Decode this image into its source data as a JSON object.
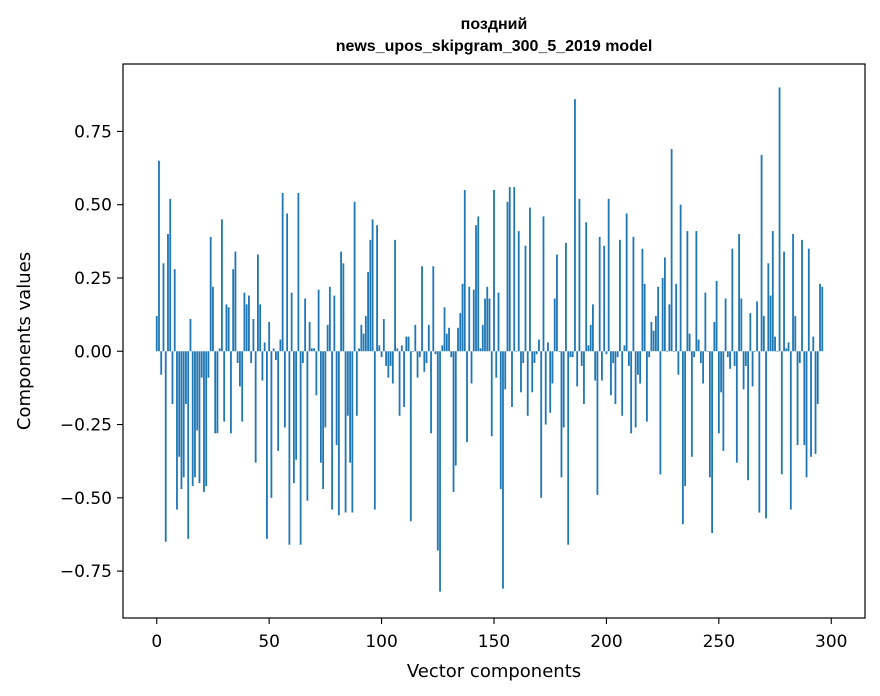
{
  "chart_data": {
    "type": "bar",
    "title_line1": "поздний",
    "title_line2": "news_upos_skipgram_300_5_2019 model",
    "xlabel": "Vector components",
    "ylabel": "Components values",
    "xlim": [
      -15,
      315
    ],
    "ylim": [
      -0.91,
      0.98
    ],
    "xticks": [
      0,
      50,
      100,
      150,
      200,
      250,
      300
    ],
    "yticks": [
      -0.75,
      -0.5,
      -0.25,
      0.0,
      0.25,
      0.5,
      0.75
    ],
    "xtick_labels": [
      "0",
      "50",
      "100",
      "150",
      "200",
      "250",
      "300"
    ],
    "ytick_labels": [
      "−0.75",
      "−0.50",
      "−0.25",
      "0.00",
      "0.25",
      "0.50",
      "0.75"
    ],
    "bar_color": "#1f77b4",
    "values": [
      0.12,
      0.65,
      -0.08,
      0.3,
      -0.65,
      0.4,
      0.52,
      -0.18,
      0.28,
      -0.54,
      -0.36,
      -0.47,
      -0.43,
      -0.18,
      -0.64,
      0.11,
      -0.46,
      -0.43,
      -0.27,
      -0.45,
      -0.09,
      -0.48,
      -0.46,
      -0.09,
      0.39,
      0.22,
      -0.28,
      -0.28,
      0.01,
      0.45,
      -0.24,
      0.16,
      0.15,
      -0.28,
      0.28,
      0.34,
      -0.04,
      -0.12,
      -0.24,
      0.2,
      0.16,
      0.19,
      -0.04,
      0.11,
      -0.38,
      0.33,
      0.16,
      -0.1,
      0.03,
      -0.64,
      0.1,
      -0.5,
      0.01,
      -0.03,
      -0.34,
      0.04,
      0.54,
      -0.26,
      0.47,
      -0.66,
      0.2,
      -0.45,
      -0.37,
      0.54,
      -0.66,
      -0.04,
      0.18,
      -0.51,
      0.1,
      0.01,
      0.01,
      -0.15,
      0.21,
      -0.38,
      -0.47,
      -0.26,
      0.09,
      0.22,
      -0.54,
      0.19,
      -0.32,
      -0.56,
      0.34,
      0.3,
      -0.55,
      -0.22,
      -0.38,
      -0.55,
      0.51,
      -0.22,
      0.01,
      0.09,
      0.06,
      0.12,
      0.27,
      0.38,
      0.45,
      -0.54,
      0.43,
      0.02,
      -0.02,
      0.11,
      -0.05,
      -0.09,
      -0.05,
      -0.11,
      0.38,
      0.01,
      -0.22,
      0.02,
      -0.19,
      0.05,
      0.05,
      -0.58,
      0.0,
      0.09,
      -0.09,
      -0.02,
      0.29,
      -0.07,
      -0.04,
      0.09,
      -0.28,
      0.29,
      -0.01,
      -0.68,
      -0.82,
      0.02,
      0.15,
      0.06,
      0.08,
      -0.02,
      -0.48,
      -0.39,
      0.08,
      0.13,
      0.23,
      0.55,
      -0.31,
      0.22,
      -0.11,
      0.21,
      0.43,
      0.46,
      0.01,
      0.09,
      0.18,
      0.22,
      0.18,
      -0.29,
      0.55,
      -0.09,
      0.2,
      -0.47,
      -0.81,
      -0.13,
      0.51,
      0.56,
      -0.19,
      0.56,
      0.0,
      0.41,
      -0.14,
      -0.04,
      0.36,
      -0.22,
      0.49,
      -0.14,
      -0.04,
      -0.01,
      0.04,
      -0.5,
      0.46,
      -0.25,
      0.03,
      -0.21,
      -0.11,
      0.18,
      0.33,
      0.0,
      -0.43,
      -0.26,
      0.37,
      -0.66,
      -0.02,
      -0.02,
      0.86,
      -0.12,
      0.52,
      -0.05,
      -0.18,
      0.44,
      0.02,
      0.09,
      0.16,
      -0.1,
      -0.49,
      0.39,
      -0.1,
      0.36,
      -0.01,
      0.52,
      -0.15,
      -0.04,
      -0.18,
      -0.02,
      0.38,
      -0.22,
      0.02,
      0.47,
      -0.05,
      -0.28,
      0.39,
      -0.26,
      -0.08,
      -0.11,
      0.35,
      0.23,
      -0.24,
      -0.02,
      0.1,
      0.07,
      0.12,
      0.22,
      -0.42,
      0.25,
      0.32,
      0.0,
      0.16,
      0.69,
      0.0,
      0.23,
      -0.08,
      0.5,
      -0.59,
      -0.46,
      0.41,
      0.06,
      -0.36,
      -0.02,
      0.41,
      0.04,
      -0.04,
      -0.11,
      0.2,
      0.0,
      -0.43,
      -0.62,
      0.1,
      0.24,
      -0.28,
      -0.14,
      -0.34,
      0.18,
      -0.02,
      -0.06,
      0.35,
      -0.05,
      -0.38,
      0.4,
      0.18,
      -0.13,
      -0.05,
      -0.44,
      0.13,
      -0.12,
      0.0,
      0.17,
      -0.55,
      0.67,
      0.12,
      -0.57,
      0.3,
      0.19,
      0.41,
      0.05,
      0.0,
      0.9,
      -0.42,
      0.34,
      0.01,
      0.03,
      -0.54,
      0.4,
      0.12,
      -0.32,
      -0.04,
      0.38,
      -0.32,
      -0.43,
      0.35,
      -0.36,
      0.05,
      -0.35,
      -0.18,
      0.23,
      0.22
    ]
  }
}
